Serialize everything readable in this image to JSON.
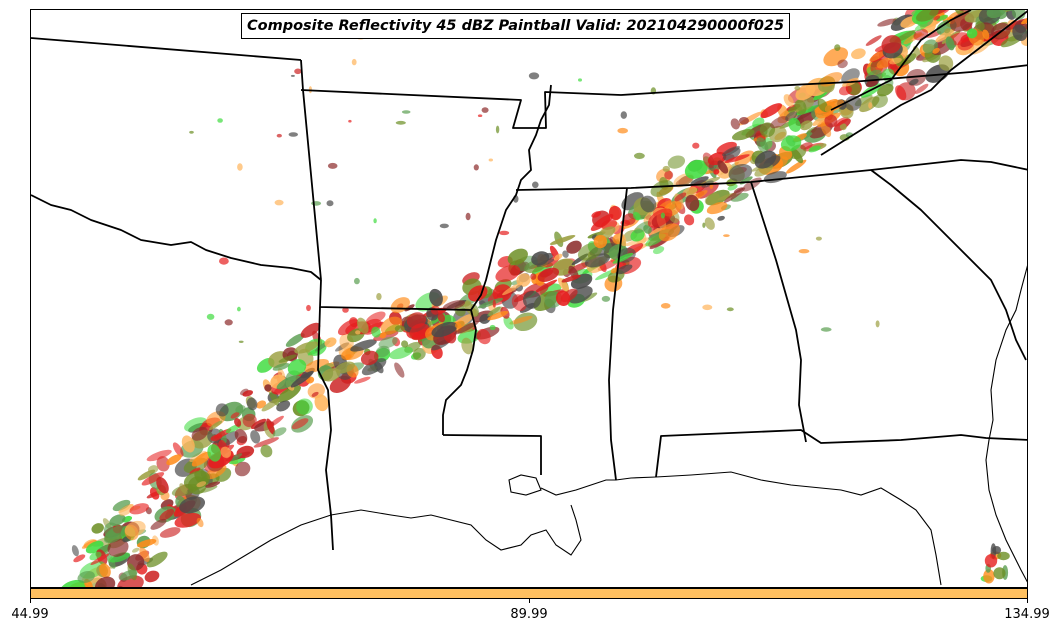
{
  "title": "Composite Reflectivity 45 dBZ Paintball Valid: 202104290000f025",
  "colors": {
    "paintball": [
      "#5a9e50",
      "#e61e1e",
      "#ff8c1a",
      "#8b2a2a",
      "#9ca042",
      "#3fdc3f",
      "#ffb45a",
      "#cc2222",
      "#4a4a4a",
      "#6b8e23"
    ],
    "colorbar_fill": "#ffc060",
    "borders": "#000000"
  },
  "colorbar": {
    "ticks": [
      "44.99",
      "89.99",
      "134.99"
    ]
  }
}
